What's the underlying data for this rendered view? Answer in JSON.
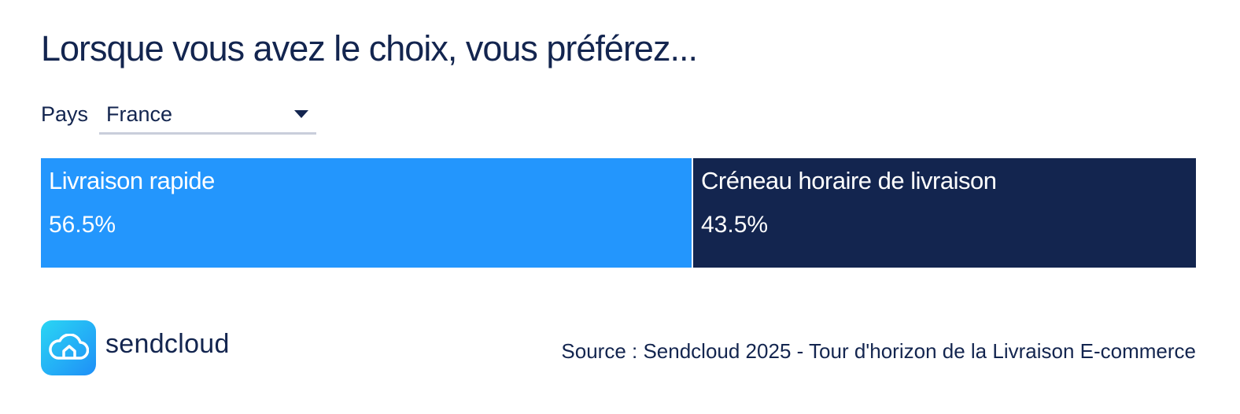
{
  "chart_data": {
    "type": "bar",
    "title": "Lorsque vous avez le choix, vous préférez...",
    "categories": [
      "Livraison rapide",
      "Créneau horaire de livraison"
    ],
    "values": [
      56.5,
      43.5
    ],
    "value_labels": [
      "56.5%",
      "43.5%"
    ],
    "colors": [
      "#2396fd",
      "#13254f"
    ],
    "orientation": "horizontal-stacked",
    "legend": "none",
    "grid": false
  },
  "filter": {
    "label": "Pays",
    "selected": "France"
  },
  "footer": {
    "brand": "sendcloud",
    "source": "Source : Sendcloud 2025 - Tour d'horizon de la Livraison E-commerce"
  }
}
